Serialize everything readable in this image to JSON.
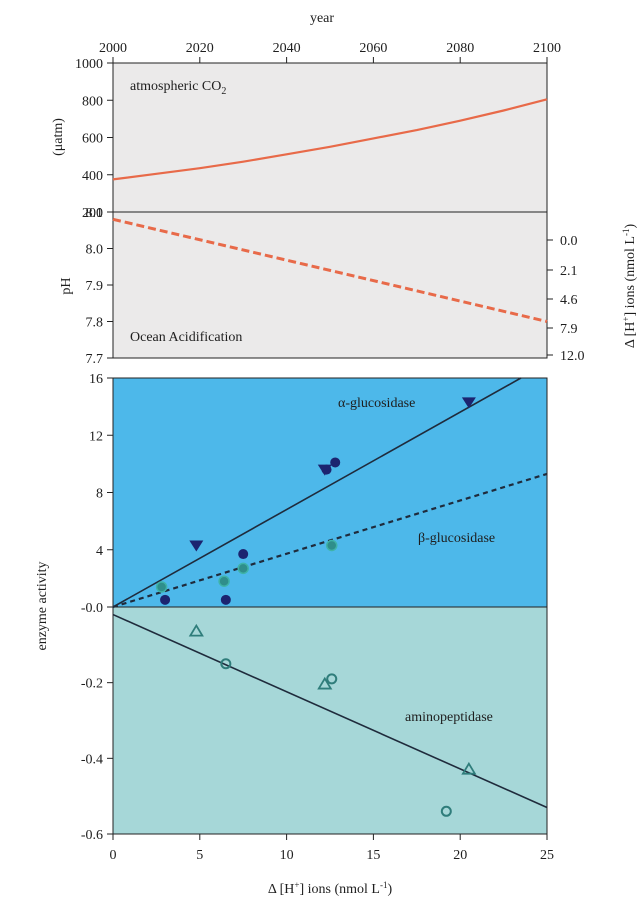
{
  "colors": {
    "panel_gray": "#ebeaea",
    "panel_blue": "#4db8ea",
    "panel_teal": "#a6d7d8",
    "co2_line": "#e86a49",
    "ph_line": "#e86a49",
    "alpha_marker": "#1c2470",
    "beta_marker": "#2f8e8b",
    "amino_marker": "#2f7d7b",
    "trend_line": "#1f2b3c"
  },
  "top_axis": {
    "label": "year",
    "ticks": [
      "2000",
      "2020",
      "2040",
      "2060",
      "2080",
      "2100"
    ]
  },
  "co2_panel": {
    "annotation_text": "atmospheric CO",
    "annotation_sub": "2",
    "ylabel": "(μatm)",
    "yticks": [
      "1000",
      "800",
      "600",
      "400",
      "200"
    ]
  },
  "ph_panel": {
    "annotation": "Ocean Acidification",
    "ylabel": "pH",
    "yticks": [
      "8.1",
      "8.0",
      "7.9",
      "7.8",
      "7.7"
    ],
    "right_ticks": [
      "0.0",
      "2.1",
      "4.6",
      "7.9",
      "12.0"
    ],
    "right_label_main": "Δ [H",
    "right_label_sup": "+",
    "right_label_mid": "] ions (nmol L",
    "right_label_sup2": "-1",
    "right_label_end": ")"
  },
  "enzyme_panel": {
    "ylabel": "enzyme activity",
    "yticks_upper": [
      "16",
      "12",
      "8",
      "4",
      "-0.0"
    ],
    "yticks_lower": [
      "-0.2",
      "-0.4",
      "-0.6"
    ],
    "xticks": [
      "0",
      "5",
      "10",
      "15",
      "20",
      "25"
    ],
    "labels": {
      "alpha": "α-glucosidase",
      "beta": "β-glucosidase",
      "amino": "aminopeptidase"
    }
  },
  "bottom_axis": {
    "label_main": "Δ [H",
    "label_sup": "+",
    "label_mid": "] ions (nmol L",
    "label_sup2": "-1",
    "label_end": ")"
  },
  "chart_data": [
    {
      "type": "line",
      "xlim": [
        2000,
        2100
      ],
      "ylim": [
        200,
        1000
      ],
      "ylabel": "(μatm)",
      "xlabel": "year",
      "series": [
        {
          "name": "atmospheric CO2",
          "x": [
            2000,
            2010,
            2020,
            2030,
            2040,
            2050,
            2060,
            2070,
            2080,
            2090,
            2100
          ],
          "y": [
            375,
            405,
            435,
            470,
            510,
            550,
            595,
            640,
            690,
            745,
            805
          ]
        }
      ]
    },
    {
      "type": "line",
      "xlim": [
        2000,
        2100
      ],
      "ylim": [
        7.7,
        8.1
      ],
      "ylabel": "pH",
      "series": [
        {
          "name": "Ocean Acidification",
          "x": [
            2000,
            2100
          ],
          "y": [
            8.08,
            7.8
          ]
        }
      ]
    },
    {
      "type": "scatter",
      "xlim": [
        0,
        25
      ],
      "ylim_upper": [
        0,
        16
      ],
      "ylim_lower": [
        -0.6,
        0
      ],
      "ylabel": "enzyme activity",
      "series": [
        {
          "name": "α-glucosidase",
          "points_circle": [
            [
              3,
              0.5
            ],
            [
              6.5,
              0.5
            ],
            [
              7.5,
              3.7
            ],
            [
              12.8,
              10.1
            ],
            [
              12.3,
              9.6
            ]
          ],
          "points_triangle": [
            [
              4.8,
              4.3
            ],
            [
              12.2,
              9.6
            ],
            [
              20.5,
              14.3
            ]
          ],
          "trend": [
            [
              0,
              0
            ],
            [
              23.5,
              16
            ]
          ]
        },
        {
          "name": "β-glucosidase",
          "points": [
            [
              2.8,
              1.4
            ],
            [
              6.4,
              1.8
            ],
            [
              7.5,
              2.7
            ],
            [
              12.6,
              4.3
            ]
          ],
          "trend": [
            [
              0,
              0
            ],
            [
              25,
              9.3
            ]
          ]
        },
        {
          "name": "aminopeptidase",
          "points_circle": [
            [
              6.5,
              -0.15
            ],
            [
              12.6,
              -0.19
            ],
            [
              19.2,
              -0.54
            ]
          ],
          "points_triangle": [
            [
              4.8,
              -0.065
            ],
            [
              12.2,
              -0.205
            ],
            [
              20.5,
              -0.43
            ]
          ],
          "trend": [
            [
              0,
              -0.02
            ],
            [
              25,
              -0.53
            ]
          ]
        }
      ]
    }
  ]
}
